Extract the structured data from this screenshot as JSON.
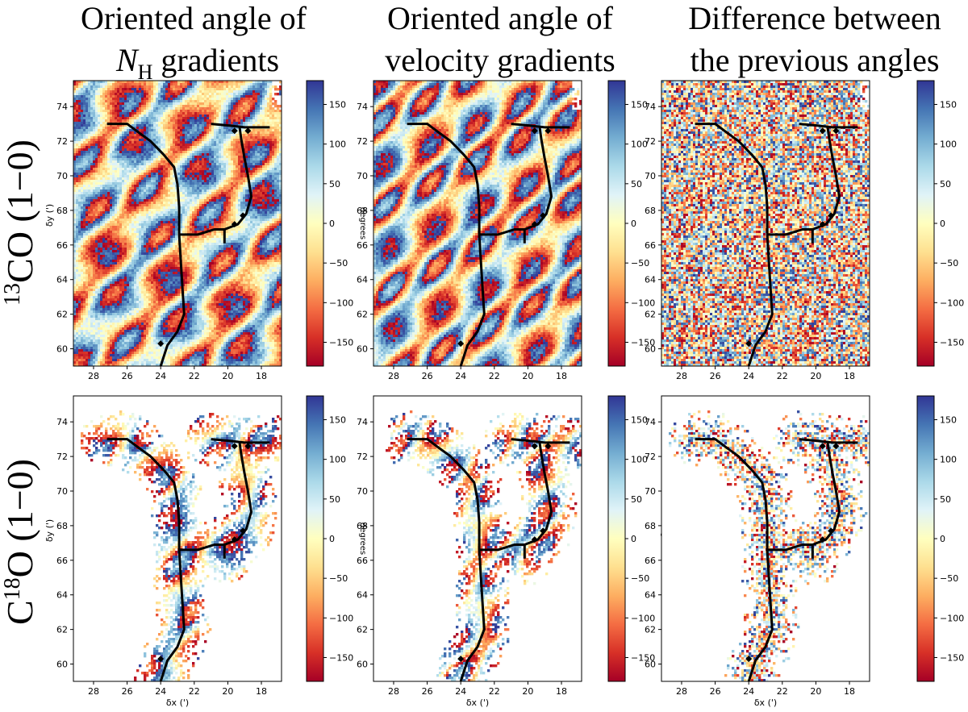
{
  "column_titles": [
    {
      "line1": "Oriented angle of",
      "line2_italic": "N",
      "line2_sub": "H",
      "line2_rest": " gradients"
    },
    {
      "line1": "Oriented angle of",
      "line2": "velocity gradients"
    },
    {
      "line1": "Difference between",
      "line2": "the previous angles"
    }
  ],
  "row_labels": [
    {
      "sup": "13",
      "main": "CO (1−0)"
    },
    {
      "pre": "C",
      "sup": "18",
      "main": "O (1−0)"
    }
  ],
  "colors": {
    "cmap": [
      "#a50026",
      "#d73027",
      "#f46d43",
      "#fdae61",
      "#fee090",
      "#ffffbf",
      "#e0f3f8",
      "#abd9e9",
      "#74add1",
      "#4575b4",
      "#313695"
    ],
    "filament": "#000000"
  },
  "chart_data": {
    "type": "heatmap",
    "panels": [
      {
        "row": "13CO (1-0)",
        "column": "Oriented angle of N_H gradients",
        "coverage": "full"
      },
      {
        "row": "13CO (1-0)",
        "column": "Oriented angle of velocity gradients",
        "coverage": "full"
      },
      {
        "row": "13CO (1-0)",
        "column": "Difference between the previous angles",
        "coverage": "full"
      },
      {
        "row": "C18O (1-0)",
        "column": "Oriented angle of N_H gradients",
        "coverage": "filament"
      },
      {
        "row": "C18O (1-0)",
        "column": "Oriented angle of velocity gradients",
        "coverage": "filament"
      },
      {
        "row": "C18O (1-0)",
        "column": "Difference between the previous angles",
        "coverage": "filament"
      }
    ],
    "xlabel": "δx (')",
    "ylabel": "δy (')",
    "xlim": [
      29.2,
      16.8
    ],
    "ylim": [
      59,
      75.5
    ],
    "xticks": [
      28,
      26,
      24,
      22,
      20,
      18
    ],
    "yticks": [
      60,
      62,
      64,
      66,
      68,
      70,
      72,
      74
    ],
    "colorbar": {
      "label": "degrees",
      "range": [
        -180,
        180
      ],
      "ticks": [
        150,
        100,
        50,
        0,
        -50,
        -100,
        -150
      ]
    },
    "filament_skeleton": [
      [
        [
          27.2,
          73.0
        ],
        [
          26.0,
          73.0
        ],
        [
          25.3,
          72.5
        ],
        [
          24.6,
          72.0
        ],
        [
          23.8,
          71.2
        ],
        [
          23.2,
          70.5
        ],
        [
          23.0,
          69.5
        ],
        [
          22.9,
          68.2
        ],
        [
          22.9,
          66.6
        ],
        [
          22.8,
          65.0
        ],
        [
          22.7,
          63.5
        ],
        [
          22.6,
          62.0
        ],
        [
          23.0,
          61.0
        ],
        [
          23.6,
          60.2
        ],
        [
          24.0,
          59.0
        ]
      ],
      [
        [
          22.9,
          66.6
        ],
        [
          21.8,
          66.6
        ],
        [
          20.8,
          66.9
        ],
        [
          20.2,
          66.9
        ],
        [
          20.2,
          66.1
        ]
      ],
      [
        [
          20.2,
          66.9
        ],
        [
          19.4,
          67.2
        ],
        [
          18.9,
          67.8
        ],
        [
          18.6,
          68.8
        ],
        [
          18.8,
          70.0
        ],
        [
          19.0,
          71.0
        ],
        [
          19.2,
          72.1
        ],
        [
          19.3,
          72.8
        ]
      ],
      [
        [
          21.0,
          73.0
        ],
        [
          19.9,
          72.9
        ],
        [
          19.0,
          72.8
        ],
        [
          17.5,
          72.8
        ]
      ]
    ],
    "markers": [
      [
        19.6,
        72.6
      ],
      [
        18.8,
        72.6
      ],
      [
        19.1,
        67.7
      ],
      [
        19.6,
        67.2
      ],
      [
        24.0,
        60.3
      ]
    ]
  }
}
